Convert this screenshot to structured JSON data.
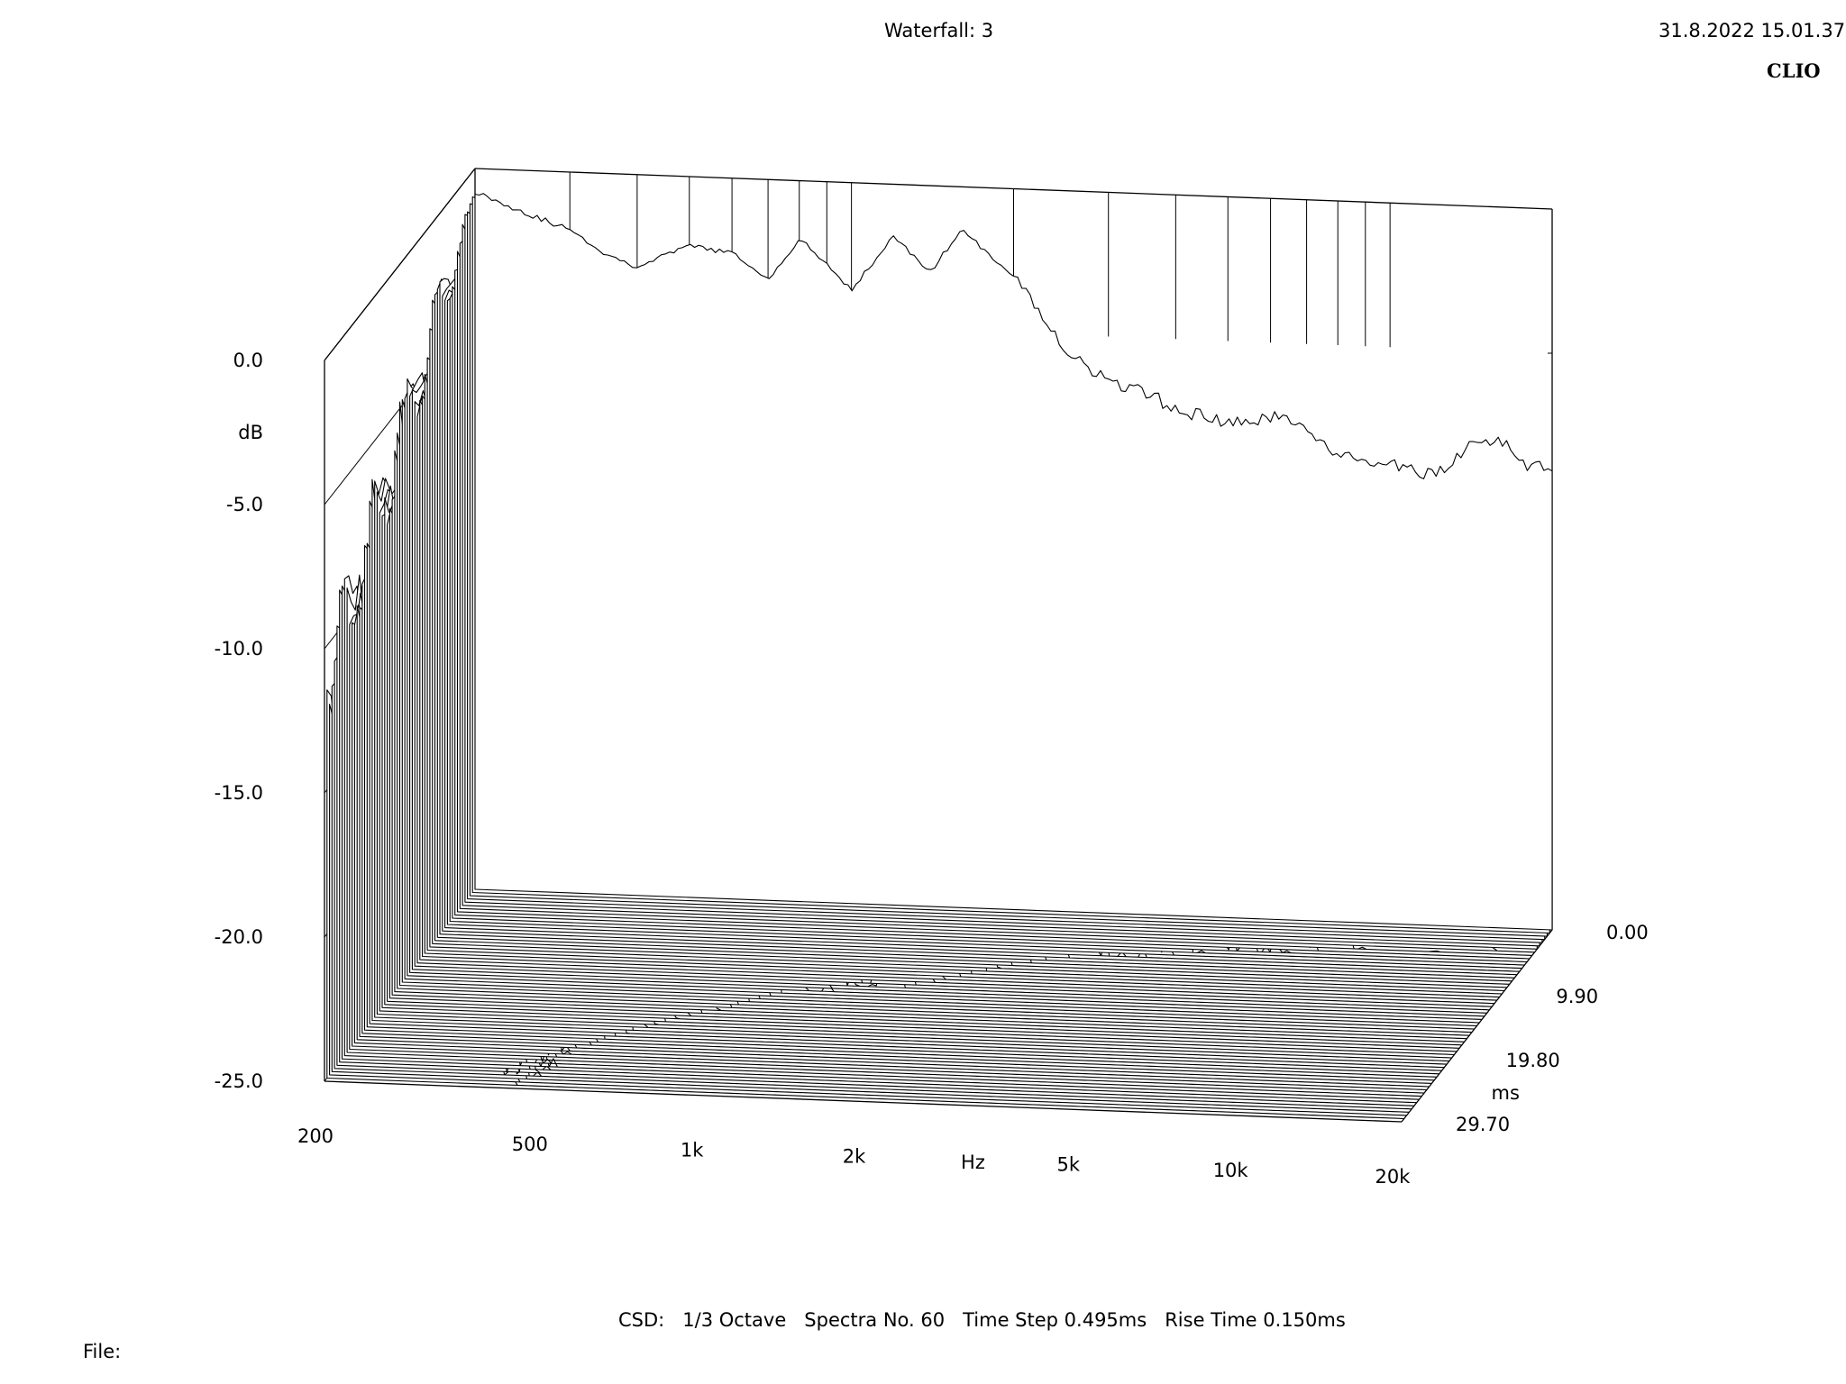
{
  "header": {
    "title": "Waterfall: 3",
    "datetime": "31.8.2022 15.01.37",
    "brand": "CLIO"
  },
  "footer": {
    "settings": "CSD:   1/3 Octave   Spectra No. 60   Time Step 0.495ms   Rise Time 0.150ms",
    "file_label": "File:"
  },
  "chart_data": {
    "type": "waterfall",
    "title": "Waterfall: 3",
    "xlabel": "Hz",
    "ylabel": "dB",
    "zlabel": "ms",
    "x_scale": "log",
    "xlim": [
      200,
      20000
    ],
    "ylim": [
      -25.0,
      0.0
    ],
    "zlim": [
      0.0,
      29.7
    ],
    "x_ticks": [
      "200",
      "500",
      "1k",
      "2k",
      "5k",
      "10k",
      "20k"
    ],
    "y_ticks": [
      "0.0",
      "-5.0",
      "-10.0",
      "-15.0",
      "-20.0",
      "-25.0"
    ],
    "z_ticks": [
      "0.00",
      "9.90",
      "19.80",
      "29.70"
    ],
    "spectra_count": 60,
    "time_step_ms": 0.495,
    "rise_time_ms": 0.15,
    "smoothing": "1/3 Octave",
    "reference_spectrum_t0": {
      "freq_hz": [
        200,
        250,
        300,
        350,
        400,
        500,
        600,
        700,
        800,
        1000,
        1200,
        1400,
        1600,
        2000,
        2500,
        3000,
        3500,
        4000,
        5000,
        6000,
        7000,
        8000,
        10000,
        12000,
        14000,
        16000,
        18000,
        20000
      ],
      "db": [
        -0.8,
        -1.5,
        -2.0,
        -2.8,
        -3.2,
        -2.4,
        -2.6,
        -3.5,
        -2.0,
        -3.7,
        -1.8,
        -3.0,
        -1.5,
        -3.0,
        -5.5,
        -6.6,
        -6.9,
        -7.4,
        -7.9,
        -7.6,
        -7.8,
        -8.9,
        -9.1,
        -9.4,
        -8.4,
        -8.0,
        -8.9,
        -9.1
      ]
    }
  }
}
